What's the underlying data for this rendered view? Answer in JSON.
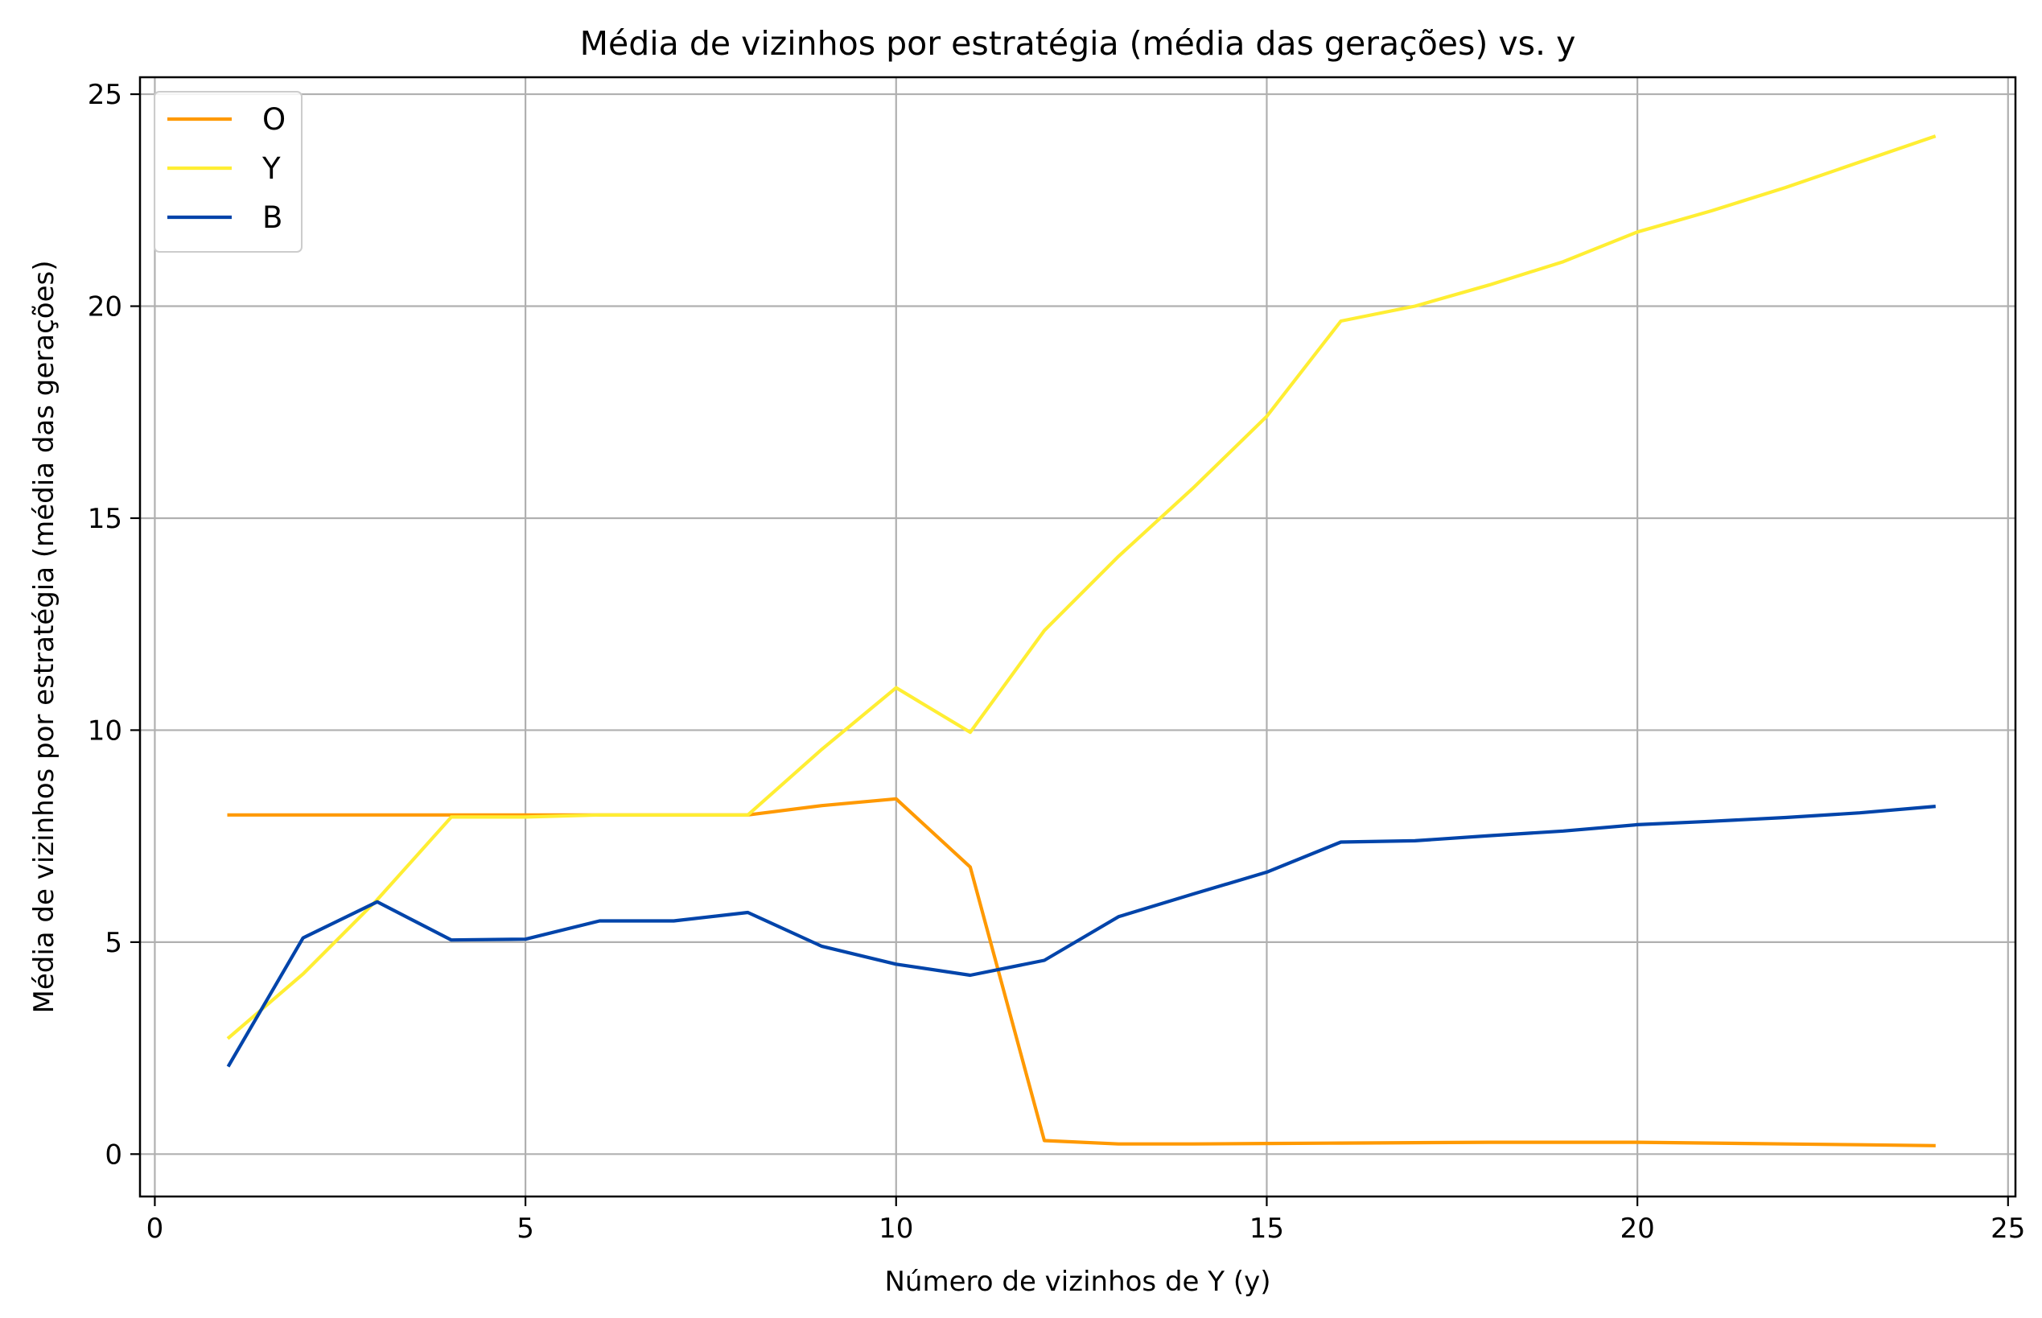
{
  "chart_data": {
    "type": "line",
    "title": "Média de vizinhos por estratégia (média das gerações) vs. y",
    "xlabel": "Número de vizinhos de Y (y)",
    "ylabel": "Média de vizinhos por estratégia (média das gerações)",
    "xlim": [
      -0.2,
      25.1
    ],
    "ylim": [
      -1.0,
      25.4
    ],
    "xticks": [
      0,
      5,
      10,
      15,
      20,
      25
    ],
    "yticks": [
      0,
      5,
      10,
      15,
      20,
      25
    ],
    "grid": true,
    "legend_position": "top-left",
    "x": [
      1,
      2,
      3,
      4,
      5,
      6,
      7,
      8,
      9,
      10,
      11,
      12,
      13,
      14,
      15,
      16,
      17,
      18,
      19,
      20,
      21,
      22,
      23,
      24
    ],
    "series": [
      {
        "name": "O",
        "color": "#ff9900",
        "values": [
          8.0,
          8.0,
          8.0,
          8.0,
          8.0,
          8.0,
          8.0,
          8.0,
          8.22,
          8.38,
          6.77,
          0.32,
          0.24,
          0.24,
          0.25,
          0.26,
          0.27,
          0.28,
          0.28,
          0.28,
          0.26,
          0.24,
          0.22,
          0.2
        ]
      },
      {
        "name": "Y",
        "color": "#ffee33",
        "values": [
          2.75,
          4.25,
          6.0,
          7.95,
          7.95,
          8.0,
          8.0,
          8.0,
          9.55,
          11.0,
          9.95,
          12.35,
          14.1,
          15.7,
          17.4,
          19.65,
          20.0,
          20.5,
          21.05,
          21.75,
          22.25,
          22.8,
          23.4,
          24.0
        ]
      },
      {
        "name": "B",
        "color": "#0044aa",
        "values": [
          2.1,
          5.1,
          5.95,
          5.05,
          5.07,
          5.5,
          5.5,
          5.7,
          4.9,
          4.48,
          4.22,
          4.57,
          5.6,
          6.13,
          6.65,
          7.36,
          7.39,
          7.51,
          7.62,
          7.77,
          7.85,
          7.94,
          8.05,
          8.2
        ]
      }
    ]
  }
}
